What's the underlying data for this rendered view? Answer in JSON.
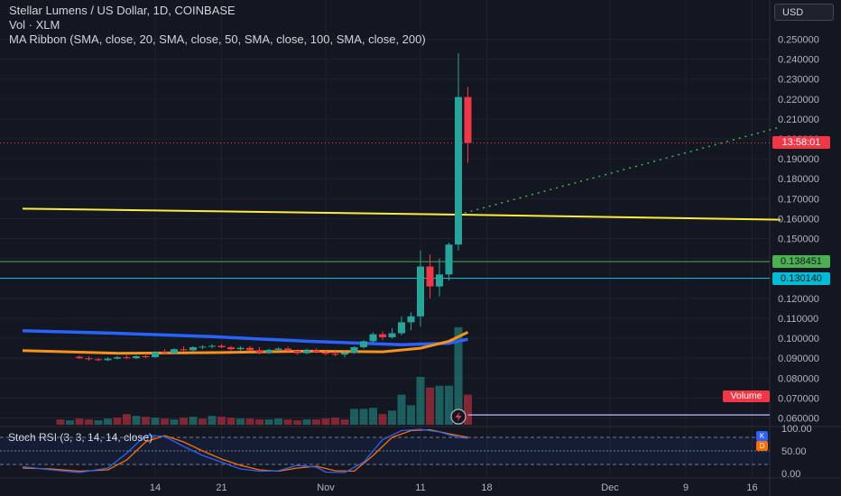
{
  "header": {
    "symbol_title": "Stellar Lumens / US Dollar, 1D, COINBASE",
    "volume_legend": "Vol · XLM",
    "ma_legend": "MA Ribbon (SMA, close, 20, SMA, close, 50, SMA, close, 100, SMA, close, 200)"
  },
  "currency_button": "USD",
  "price_labels": {
    "countdown": "13:58:01",
    "green_level": "0.138451",
    "teal_level": "0.130140"
  },
  "volume_badge": "Volume",
  "rsi": {
    "legend": "Stoch RSI (3, 3, 14, 14, close)",
    "k_badge": "K",
    "d_badge": "D"
  },
  "colors": {
    "background": "#131722",
    "up": "#26a69a",
    "down": "#f23645",
    "ma_fast": "#ffeb3b",
    "ma_orange": "#f7931a",
    "ma_blue": "#2962ff",
    "k_line": "#2962ff",
    "d_line": "#ff6d00",
    "green_line": "#4caf50",
    "teal_line": "#00bcd4"
  },
  "chart_data": {
    "type": "candlestick",
    "price_axis": {
      "ticks": [
        "0.250000",
        "0.240000",
        "0.230000",
        "0.220000",
        "0.210000",
        "0.200000",
        "0.190000",
        "0.180000",
        "0.170000",
        "0.160000",
        "0.150000",
        "0.140000",
        "0.130000",
        "0.120000",
        "0.110000",
        "0.100000",
        "0.090000",
        "0.080000",
        "0.070000",
        "0.060000"
      ],
      "range": [
        0.0565,
        0.253
      ]
    },
    "time_axis": {
      "labels": [
        {
          "text": "14",
          "day": 14
        },
        {
          "text": "21",
          "day": 21
        },
        {
          "text": "Nov",
          "day": 32
        },
        {
          "text": "11",
          "day": 42
        },
        {
          "text": "18",
          "day": 49
        },
        {
          "text": "Dec",
          "day": 62
        },
        {
          "text": "9",
          "day": 70
        },
        {
          "text": "16",
          "day": 77
        }
      ]
    },
    "rsi_axis": {
      "ticks": [
        "100.00",
        "50.00",
        "0.00"
      ],
      "range": [
        0,
        100
      ],
      "bands": [
        80,
        20
      ]
    },
    "candles": [
      {
        "day": 6,
        "o": 0.0907,
        "h": 0.0915,
        "l": 0.0895,
        "c": 0.09
      },
      {
        "day": 7,
        "o": 0.09,
        "h": 0.091,
        "l": 0.0888,
        "c": 0.0895
      },
      {
        "day": 8,
        "o": 0.0895,
        "h": 0.0902,
        "l": 0.0885,
        "c": 0.089
      },
      {
        "day": 9,
        "o": 0.089,
        "h": 0.0905,
        "l": 0.0885,
        "c": 0.0898
      },
      {
        "day": 10,
        "o": 0.0898,
        "h": 0.091,
        "l": 0.0892,
        "c": 0.0905
      },
      {
        "day": 11,
        "o": 0.0905,
        "h": 0.0915,
        "l": 0.0895,
        "c": 0.09
      },
      {
        "day": 12,
        "o": 0.09,
        "h": 0.0915,
        "l": 0.0895,
        "c": 0.091
      },
      {
        "day": 13,
        "o": 0.091,
        "h": 0.0925,
        "l": 0.09,
        "c": 0.0905
      },
      {
        "day": 14,
        "o": 0.0905,
        "h": 0.0935,
        "l": 0.09,
        "c": 0.093
      },
      {
        "day": 15,
        "o": 0.093,
        "h": 0.0945,
        "l": 0.0918,
        "c": 0.0925
      },
      {
        "day": 16,
        "o": 0.0925,
        "h": 0.095,
        "l": 0.092,
        "c": 0.0945
      },
      {
        "day": 17,
        "o": 0.0945,
        "h": 0.096,
        "l": 0.0935,
        "c": 0.094
      },
      {
        "day": 18,
        "o": 0.094,
        "h": 0.096,
        "l": 0.0935,
        "c": 0.0955
      },
      {
        "day": 19,
        "o": 0.0955,
        "h": 0.0965,
        "l": 0.0945,
        "c": 0.0958
      },
      {
        "day": 20,
        "o": 0.0958,
        "h": 0.097,
        "l": 0.095,
        "c": 0.0962
      },
      {
        "day": 21,
        "o": 0.0962,
        "h": 0.097,
        "l": 0.095,
        "c": 0.0955
      },
      {
        "day": 22,
        "o": 0.0955,
        "h": 0.0962,
        "l": 0.094,
        "c": 0.0945
      },
      {
        "day": 23,
        "o": 0.0945,
        "h": 0.096,
        "l": 0.0938,
        "c": 0.0952
      },
      {
        "day": 24,
        "o": 0.0952,
        "h": 0.096,
        "l": 0.0935,
        "c": 0.094
      },
      {
        "day": 25,
        "o": 0.094,
        "h": 0.0955,
        "l": 0.092,
        "c": 0.0928
      },
      {
        "day": 26,
        "o": 0.0928,
        "h": 0.0948,
        "l": 0.0922,
        "c": 0.0942
      },
      {
        "day": 27,
        "o": 0.0942,
        "h": 0.0955,
        "l": 0.0935,
        "c": 0.0948
      },
      {
        "day": 28,
        "o": 0.0948,
        "h": 0.0958,
        "l": 0.0932,
        "c": 0.0938
      },
      {
        "day": 29,
        "o": 0.0938,
        "h": 0.0945,
        "l": 0.0918,
        "c": 0.0925
      },
      {
        "day": 30,
        "o": 0.0925,
        "h": 0.0948,
        "l": 0.092,
        "c": 0.094
      },
      {
        "day": 31,
        "o": 0.094,
        "h": 0.095,
        "l": 0.0925,
        "c": 0.093
      },
      {
        "day": 32,
        "o": 0.093,
        "h": 0.0942,
        "l": 0.0915,
        "c": 0.0922
      },
      {
        "day": 33,
        "o": 0.0922,
        "h": 0.0935,
        "l": 0.091,
        "c": 0.0918
      },
      {
        "day": 34,
        "o": 0.0918,
        "h": 0.0935,
        "l": 0.0905,
        "c": 0.0928
      },
      {
        "day": 35,
        "o": 0.0928,
        "h": 0.096,
        "l": 0.0922,
        "c": 0.0955
      },
      {
        "day": 36,
        "o": 0.0955,
        "h": 0.099,
        "l": 0.0948,
        "c": 0.0985
      },
      {
        "day": 37,
        "o": 0.0985,
        "h": 0.103,
        "l": 0.0975,
        "c": 0.102
      },
      {
        "day": 38,
        "o": 0.102,
        "h": 0.1035,
        "l": 0.099,
        "c": 0.1005
      },
      {
        "day": 39,
        "o": 0.1005,
        "h": 0.105,
        "l": 0.0998,
        "c": 0.1025
      },
      {
        "day": 40,
        "o": 0.1025,
        "h": 0.111,
        "l": 0.1015,
        "c": 0.108
      },
      {
        "day": 41,
        "o": 0.108,
        "h": 0.113,
        "l": 0.104,
        "c": 0.111
      },
      {
        "day": 42,
        "o": 0.111,
        "h": 0.144,
        "l": 0.106,
        "c": 0.136
      },
      {
        "day": 43,
        "o": 0.136,
        "h": 0.142,
        "l": 0.12,
        "c": 0.126
      },
      {
        "day": 44,
        "o": 0.126,
        "h": 0.14,
        "l": 0.121,
        "c": 0.132
      },
      {
        "day": 45,
        "o": 0.132,
        "h": 0.148,
        "l": 0.129,
        "c": 0.147
      },
      {
        "day": 46,
        "o": 0.147,
        "h": 0.243,
        "l": 0.144,
        "c": 0.221
      },
      {
        "day": 47,
        "o": 0.221,
        "h": 0.226,
        "l": 0.188,
        "c": 0.198
      }
    ],
    "volume": {
      "range": [
        0,
        120
      ],
      "bars": [
        {
          "day": 4,
          "v": 6,
          "up": false
        },
        {
          "day": 5,
          "v": 5,
          "up": true
        },
        {
          "day": 6,
          "v": 7,
          "up": false
        },
        {
          "day": 7,
          "v": 6,
          "up": false
        },
        {
          "day": 8,
          "v": 5,
          "up": true
        },
        {
          "day": 9,
          "v": 7,
          "up": true
        },
        {
          "day": 10,
          "v": 8,
          "up": false
        },
        {
          "day": 11,
          "v": 12,
          "up": false
        },
        {
          "day": 12,
          "v": 10,
          "up": true
        },
        {
          "day": 13,
          "v": 9,
          "up": false
        },
        {
          "day": 14,
          "v": 8,
          "up": true
        },
        {
          "day": 15,
          "v": 7,
          "up": false
        },
        {
          "day": 16,
          "v": 6,
          "up": true
        },
        {
          "day": 17,
          "v": 8,
          "up": false
        },
        {
          "day": 18,
          "v": 9,
          "up": true
        },
        {
          "day": 19,
          "v": 7,
          "up": false
        },
        {
          "day": 20,
          "v": 10,
          "up": true
        },
        {
          "day": 21,
          "v": 9,
          "up": false
        },
        {
          "day": 22,
          "v": 8,
          "up": false
        },
        {
          "day": 23,
          "v": 7,
          "up": true
        },
        {
          "day": 24,
          "v": 7,
          "up": false
        },
        {
          "day": 25,
          "v": 6,
          "up": false
        },
        {
          "day": 26,
          "v": 6,
          "up": true
        },
        {
          "day": 27,
          "v": 7,
          "up": true
        },
        {
          "day": 28,
          "v": 6,
          "up": false
        },
        {
          "day": 29,
          "v": 5,
          "up": false
        },
        {
          "day": 30,
          "v": 6,
          "up": true
        },
        {
          "day": 31,
          "v": 6,
          "up": false
        },
        {
          "day": 32,
          "v": 7,
          "up": false
        },
        {
          "day": 33,
          "v": 8,
          "up": false
        },
        {
          "day": 34,
          "v": 6,
          "up": false
        },
        {
          "day": 35,
          "v": 18,
          "up": true
        },
        {
          "day": 36,
          "v": 18,
          "up": true
        },
        {
          "day": 37,
          "v": 19,
          "up": true
        },
        {
          "day": 38,
          "v": 12,
          "up": false
        },
        {
          "day": 39,
          "v": 16,
          "up": true
        },
        {
          "day": 40,
          "v": 34,
          "up": true
        },
        {
          "day": 41,
          "v": 22,
          "up": true
        },
        {
          "day": 42,
          "v": 54,
          "up": true
        },
        {
          "day": 43,
          "v": 42,
          "up": false
        },
        {
          "day": 44,
          "v": 44,
          "up": true
        },
        {
          "day": 45,
          "v": 44,
          "up": true
        },
        {
          "day": 46,
          "v": 110,
          "up": true
        },
        {
          "day": 47,
          "v": 34,
          "up": false
        }
      ]
    },
    "ma_ribbon": {
      "blue": [
        [
          0,
          0.1038
        ],
        [
          10,
          0.1025
        ],
        [
          20,
          0.1008
        ],
        [
          30,
          0.0985
        ],
        [
          40,
          0.0968
        ],
        [
          45,
          0.0975
        ],
        [
          47,
          0.0995
        ]
      ],
      "orange": [
        [
          0,
          0.0938
        ],
        [
          10,
          0.0925
        ],
        [
          20,
          0.0928
        ],
        [
          30,
          0.0935
        ],
        [
          38,
          0.0932
        ],
        [
          42,
          0.095
        ],
        [
          45,
          0.0985
        ],
        [
          47,
          0.103
        ]
      ],
      "yellow": [
        [
          0,
          0.165
        ],
        [
          46,
          0.162
        ],
        [
          80,
          0.1595
        ]
      ]
    },
    "levels": {
      "green": 0.138451,
      "teal": 0.13014,
      "current": 0.198
    },
    "trend_extension": [
      [
        46,
        0.162
      ],
      [
        80,
        0.206
      ]
    ],
    "volume_ma_level": 0.0615,
    "stoch_k": [
      [
        0,
        15
      ],
      [
        3,
        8
      ],
      [
        6,
        2
      ],
      [
        9,
        12
      ],
      [
        11,
        45
      ],
      [
        13,
        85
      ],
      [
        15,
        82
      ],
      [
        17,
        60
      ],
      [
        19,
        40
      ],
      [
        21,
        25
      ],
      [
        23,
        10
      ],
      [
        25,
        5
      ],
      [
        27,
        6
      ],
      [
        29,
        18
      ],
      [
        31,
        14
      ],
      [
        32,
        3
      ],
      [
        34,
        2
      ],
      [
        36,
        25
      ],
      [
        38,
        75
      ],
      [
        40,
        95
      ],
      [
        42,
        98
      ],
      [
        44,
        92
      ],
      [
        46,
        80
      ],
      [
        47,
        78
      ]
    ],
    "stoch_d": [
      [
        0,
        12
      ],
      [
        3,
        10
      ],
      [
        6,
        5
      ],
      [
        9,
        8
      ],
      [
        11,
        30
      ],
      [
        13,
        70
      ],
      [
        15,
        84
      ],
      [
        17,
        70
      ],
      [
        19,
        50
      ],
      [
        21,
        32
      ],
      [
        23,
        18
      ],
      [
        25,
        8
      ],
      [
        27,
        5
      ],
      [
        29,
        12
      ],
      [
        31,
        16
      ],
      [
        33,
        6
      ],
      [
        35,
        5
      ],
      [
        37,
        40
      ],
      [
        39,
        80
      ],
      [
        41,
        95
      ],
      [
        43,
        97
      ],
      [
        45,
        88
      ],
      [
        47,
        80
      ]
    ]
  }
}
